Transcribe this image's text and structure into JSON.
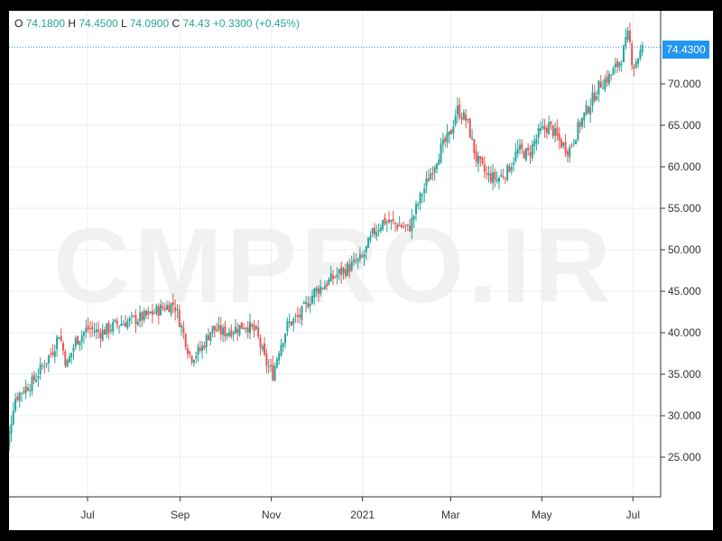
{
  "header": {
    "open_label": "O",
    "open": "74.1800",
    "high_label": "H",
    "high": "74.4500",
    "low_label": "L",
    "low": "74.0900",
    "close_label": "C",
    "close": "74.43",
    "change": "+0.3300 (+0.45%)"
  },
  "watermark": "CMPRO.IR",
  "last_price_label": "74.4300",
  "colors": {
    "up": "#26a69a",
    "down": "#ef5350",
    "grid": "#e8eef3",
    "price_line": "#2196f3",
    "badge": "#2196f3"
  },
  "chart_data": {
    "type": "candlestick",
    "title": "",
    "xlabel": "",
    "ylabel": "",
    "ylim": [
      19,
      79
    ],
    "x_ticks": [
      "Jul",
      "Sep",
      "Nov",
      "2021",
      "Mar",
      "May",
      "Jul"
    ],
    "y_ticks": [
      "25.000",
      "30.000",
      "35.000",
      "40.000",
      "45.000",
      "50.000",
      "55.000",
      "60.000",
      "65.000",
      "70.000"
    ],
    "y_tick_values": [
      25,
      30,
      35,
      40,
      45,
      50,
      55,
      60,
      65,
      70
    ],
    "last_price": 74.43,
    "grid": true,
    "approx_close_path": [
      [
        "2020-05-04",
        24
      ],
      [
        "2020-05-08",
        26
      ],
      [
        "2020-05-13",
        32
      ],
      [
        "2020-05-18",
        33
      ],
      [
        "2020-05-25",
        34
      ],
      [
        "2020-06-01",
        36
      ],
      [
        "2020-06-08",
        38
      ],
      [
        "2020-06-12",
        40
      ],
      [
        "2020-06-17",
        36
      ],
      [
        "2020-06-23",
        39
      ],
      [
        "2020-07-01",
        40.5
      ],
      [
        "2020-07-10",
        40
      ],
      [
        "2020-07-20",
        41
      ],
      [
        "2020-07-31",
        41.5
      ],
      [
        "2020-08-10",
        42
      ],
      [
        "2020-08-20",
        43
      ],
      [
        "2020-08-28",
        43.5
      ],
      [
        "2020-09-03",
        40
      ],
      [
        "2020-09-08",
        37
      ],
      [
        "2020-09-15",
        38
      ],
      [
        "2020-09-22",
        40.5
      ],
      [
        "2020-09-30",
        40
      ],
      [
        "2020-10-08",
        40.5
      ],
      [
        "2020-10-15",
        41
      ],
      [
        "2020-10-22",
        40
      ],
      [
        "2020-10-28",
        36.5
      ],
      [
        "2020-11-02",
        35
      ],
      [
        "2020-11-06",
        38
      ],
      [
        "2020-11-12",
        41
      ],
      [
        "2020-11-20",
        42
      ],
      [
        "2020-11-30",
        45
      ],
      [
        "2020-12-08",
        46
      ],
      [
        "2020-12-15",
        47
      ],
      [
        "2020-12-24",
        48
      ],
      [
        "2021-01-01",
        49
      ],
      [
        "2021-01-08",
        52
      ],
      [
        "2021-01-15",
        53.5
      ],
      [
        "2021-01-25",
        53
      ],
      [
        "2021-02-01",
        52.5
      ],
      [
        "2021-02-08",
        56
      ],
      [
        "2021-02-15",
        59
      ],
      [
        "2021-02-22",
        62
      ],
      [
        "2021-03-01",
        64
      ],
      [
        "2021-03-05",
        67
      ],
      [
        "2021-03-12",
        65.5
      ],
      [
        "2021-03-18",
        61
      ],
      [
        "2021-03-25",
        59
      ],
      [
        "2021-04-01",
        58.5
      ],
      [
        "2021-04-08",
        59.5
      ],
      [
        "2021-04-15",
        62
      ],
      [
        "2021-04-22",
        61.5
      ],
      [
        "2021-04-29",
        64
      ],
      [
        "2021-05-06",
        65
      ],
      [
        "2021-05-13",
        63
      ],
      [
        "2021-05-19",
        62
      ],
      [
        "2021-05-26",
        65
      ],
      [
        "2021-06-02",
        67.5
      ],
      [
        "2021-06-09",
        70
      ],
      [
        "2021-06-16",
        71
      ],
      [
        "2021-06-23",
        73
      ],
      [
        "2021-06-28",
        76
      ],
      [
        "2021-07-01",
        72
      ],
      [
        "2021-07-05",
        73.5
      ],
      [
        "2021-07-08",
        74.43
      ]
    ]
  }
}
